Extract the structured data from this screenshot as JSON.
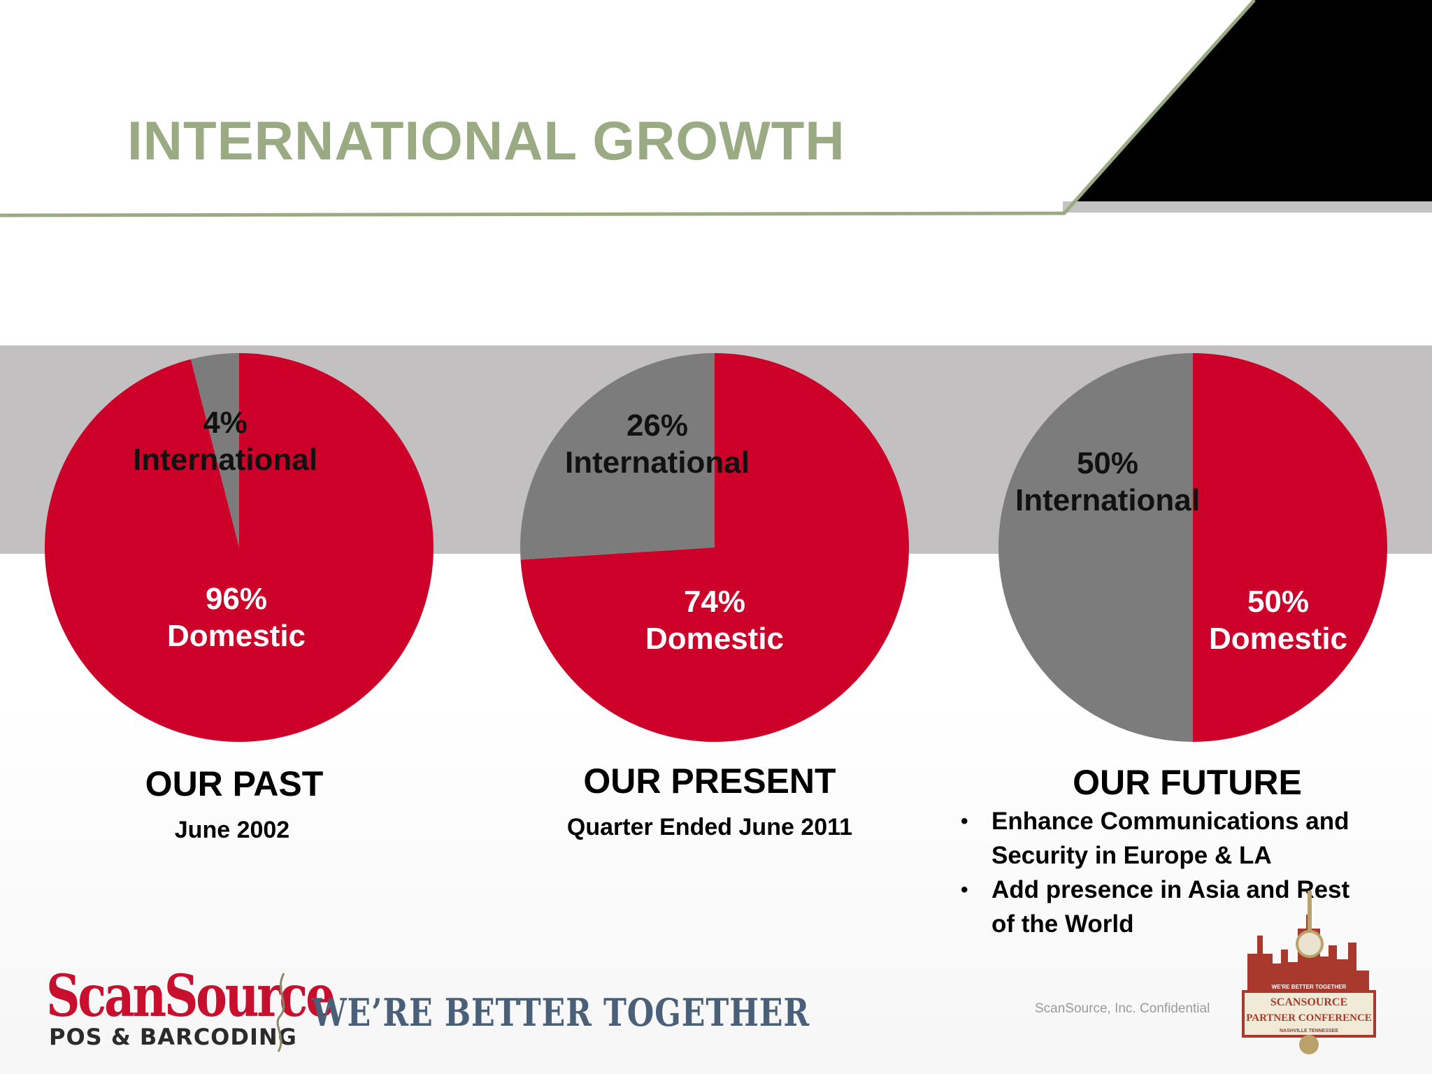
{
  "page": {
    "title": "INTERNATIONAL GROWTH"
  },
  "colors": {
    "title": "#9aab84",
    "domestic": "#cc0029",
    "international": "#7d7c7d",
    "band": "#c2c0c1",
    "corner": "#000000",
    "rule": "#9aab84"
  },
  "chart_data": [
    {
      "type": "pie",
      "title": "OUR PAST",
      "subtitle": "June 2002",
      "labels": [
        {
          "pct": "96%",
          "name": "Domestic"
        },
        {
          "pct": "4%",
          "name": "International"
        }
      ],
      "values": [
        96,
        4
      ]
    },
    {
      "type": "pie",
      "title": "OUR PRESENT",
      "subtitle": "Quarter Ended June 2011",
      "labels": [
        {
          "pct": "74%",
          "name": "Domestic"
        },
        {
          "pct": "26%",
          "name": "International"
        }
      ],
      "values": [
        74,
        26
      ]
    },
    {
      "type": "pie",
      "title": "OUR FUTURE",
      "subtitle": "",
      "labels": [
        {
          "pct": "50%",
          "name": "Domestic"
        },
        {
          "pct": "50%",
          "name": "International"
        }
      ],
      "values": [
        50,
        50
      ],
      "bullets": [
        "Enhance Communications and Security in Europe & LA",
        "Add presence in Asia and Rest of the World"
      ]
    }
  ],
  "footer": {
    "logo_main": "ScanSource",
    "logo_sub": "POS & BARCODING",
    "tagline": "WE’RE BETTER TOGETHER",
    "confidential": "ScanSource, Inc. Confidential",
    "badge_top": "WE'RE BETTER TOGETHER",
    "badge_line1": "SCANSOURCE",
    "badge_line2": "PARTNER CONFERENCE",
    "badge_bottom": "NASHVILLE TENNESSEE",
    "logo_icon": "guitar-skyline-icon"
  }
}
